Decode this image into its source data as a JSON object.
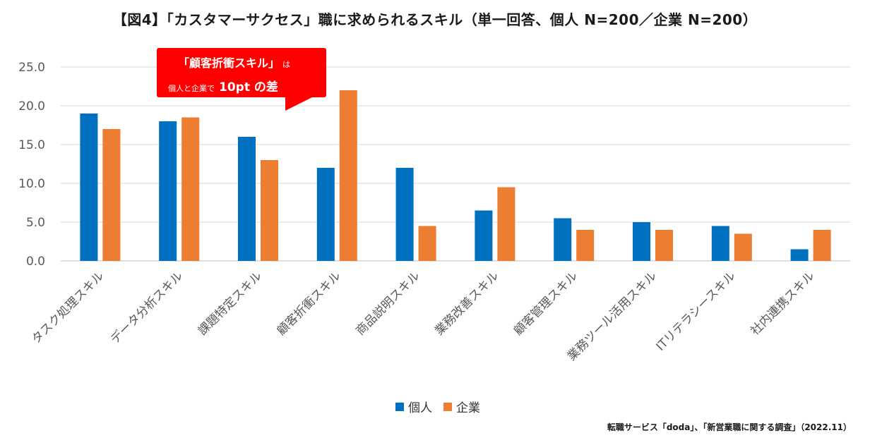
{
  "title": "【図4】「カスタマーサクセス」職に求められるスキル（単一回答、個人 N=200／企業 N=200）",
  "callout": {
    "line1_big": "「顧客折衝スキル」",
    "line1_small": "は",
    "line2_small": "個人と企業で",
    "line2_big": "10pt の差"
  },
  "source": "転職サービス「doda」、「新営業職に関する調査」（2022.11）",
  "colors": {
    "personal": "#0070c0",
    "company": "#ed7d31",
    "grid": "#d9d9d9",
    "callout": "#ff0000"
  },
  "chart_data": {
    "type": "bar",
    "categories": [
      "タスク処理スキル",
      "データ分析スキル",
      "課題特定スキル",
      "顧客折衝スキル",
      "商品説明スキル",
      "業務改善スキル",
      "顧客管理スキル",
      "業務ツール活用スキル",
      "ITリテラシースキル",
      "社内連携スキル"
    ],
    "series": [
      {
        "name": "個人",
        "values": [
          19.0,
          18.0,
          16.0,
          12.0,
          12.0,
          6.5,
          5.5,
          5.0,
          4.5,
          1.5
        ]
      },
      {
        "name": "企業",
        "values": [
          17.0,
          18.5,
          13.0,
          22.0,
          4.5,
          9.5,
          4.0,
          4.0,
          3.5,
          4.0
        ]
      }
    ],
    "yticks": [
      "0.0",
      "5.0",
      "10.0",
      "15.0",
      "20.0",
      "25.0"
    ],
    "ylim": [
      0,
      25
    ],
    "grid": true,
    "legend_position": "bottom-center"
  }
}
